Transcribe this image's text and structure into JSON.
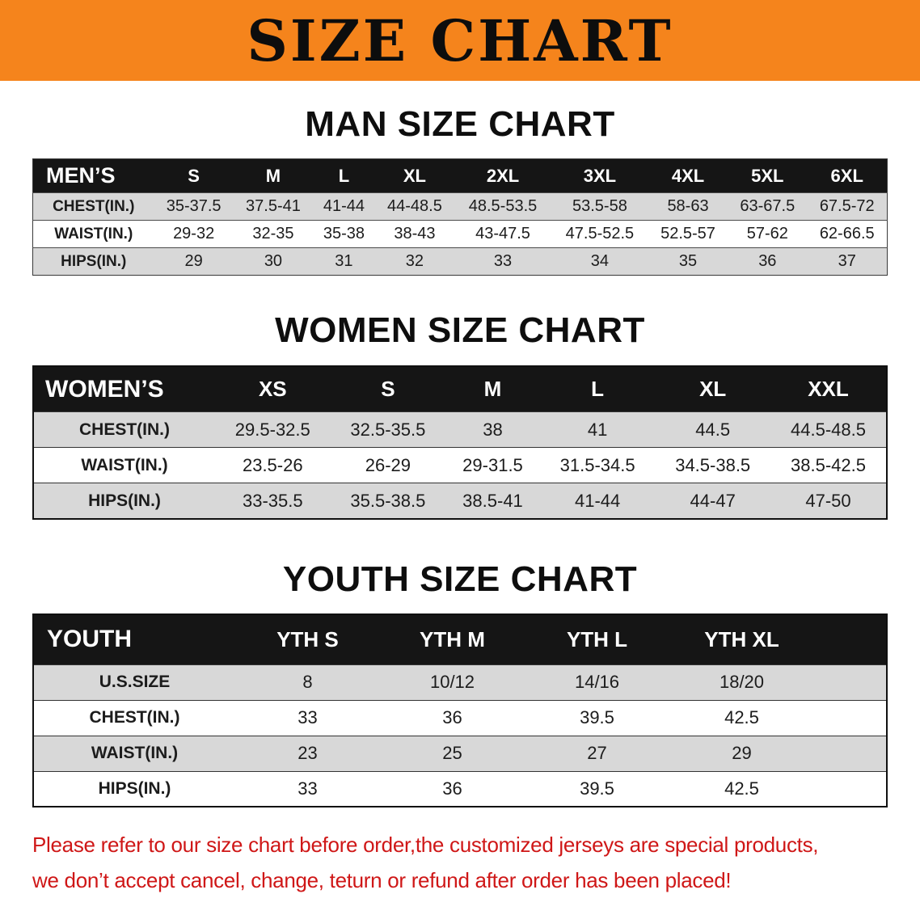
{
  "banner": {
    "title": "SIZE CHART"
  },
  "sections": [
    {
      "id": "men",
      "heading": "MAN SIZE CHART",
      "table": {
        "header": [
          "MEN’S",
          "S",
          "M",
          "L",
          "XL",
          "2XL",
          "3XL",
          "4XL",
          "5XL",
          "6XL"
        ],
        "rows": [
          [
            "CHEST(IN.)",
            "35-37.5",
            "37.5-41",
            "41-44",
            "44-48.5",
            "48.5-53.5",
            "53.5-58",
            "58-63",
            "63-67.5",
            "67.5-72"
          ],
          [
            "WAIST(IN.)",
            "29-32",
            "32-35",
            "35-38",
            "38-43",
            "43-47.5",
            "47.5-52.5",
            "52.5-57",
            "57-62",
            "62-66.5"
          ],
          [
            "HIPS(IN.)",
            "29",
            "30",
            "31",
            "32",
            "33",
            "34",
            "35",
            "36",
            "37"
          ]
        ]
      }
    },
    {
      "id": "women",
      "heading": "WOMEN SIZE CHART",
      "table": {
        "header": [
          "WOMEN’S",
          "XS",
          "S",
          "M",
          "L",
          "XL",
          "XXL"
        ],
        "rows": [
          [
            "CHEST(IN.)",
            "29.5-32.5",
            "32.5-35.5",
            "38",
            "41",
            "44.5",
            "44.5-48.5"
          ],
          [
            "WAIST(IN.)",
            "23.5-26",
            "26-29",
            "29-31.5",
            "31.5-34.5",
            "34.5-38.5",
            "38.5-42.5"
          ],
          [
            "HIPS(IN.)",
            "33-35.5",
            "35.5-38.5",
            "38.5-41",
            "41-44",
            "44-47",
            "47-50"
          ]
        ]
      }
    },
    {
      "id": "youth",
      "heading": "YOUTH SIZE CHART",
      "table": {
        "header": [
          "YOUTH",
          "YTH S",
          "YTH M",
          "YTH L",
          "YTH XL",
          ""
        ],
        "rows": [
          [
            "U.S.SIZE",
            "8",
            "10/12",
            "14/16",
            "18/20",
            ""
          ],
          [
            "CHEST(IN.)",
            "33",
            "36",
            "39.5",
            "42.5",
            ""
          ],
          [
            "WAIST(IN.)",
            "23",
            "25",
            "27",
            "29",
            ""
          ],
          [
            "HIPS(IN.)",
            "33",
            "36",
            "39.5",
            "42.5",
            ""
          ]
        ]
      }
    }
  ],
  "footer": {
    "line1": "Please refer to our size chart before order,the customized jerseys are special products,",
    "line2": "we don’t accept cancel, change, teturn or refund after order has been placed!"
  },
  "colors": {
    "banner-bg": "#f5841c",
    "table-header-bg": "#151515",
    "stripe-bg": "#d8d8d8",
    "note-red": "#cf1717"
  }
}
